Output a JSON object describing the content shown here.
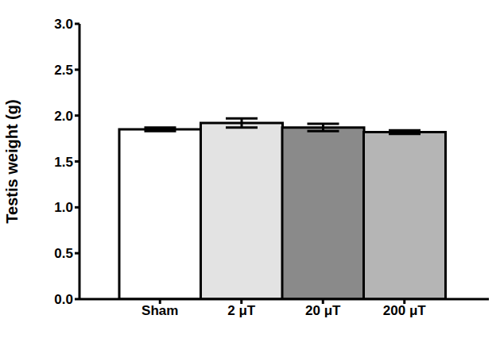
{
  "chart_data": {
    "type": "bar",
    "y_label": "Testis weight (g)",
    "categories": [
      "Sham",
      "2 μT",
      "20 μT",
      "200 μT"
    ],
    "values": [
      1.85,
      1.92,
      1.87,
      1.82
    ],
    "errors": [
      0.02,
      0.05,
      0.04,
      0.02
    ],
    "colors": [
      "#ffffff",
      "#e3e3e3",
      "#8a8a8a",
      "#b5b5b5"
    ],
    "ylim": [
      0,
      3
    ],
    "yticks": [
      {
        "value": 0,
        "label": "0.0"
      },
      {
        "value": 0.5,
        "label": "0.5"
      },
      {
        "value": 1,
        "label": "1.0"
      },
      {
        "value": 1.5,
        "label": "1.5"
      },
      {
        "value": 2,
        "label": "2.0"
      },
      {
        "value": 2.5,
        "label": "2.5"
      },
      {
        "value": 3,
        "label": "3.0"
      }
    ],
    "grid": false
  }
}
